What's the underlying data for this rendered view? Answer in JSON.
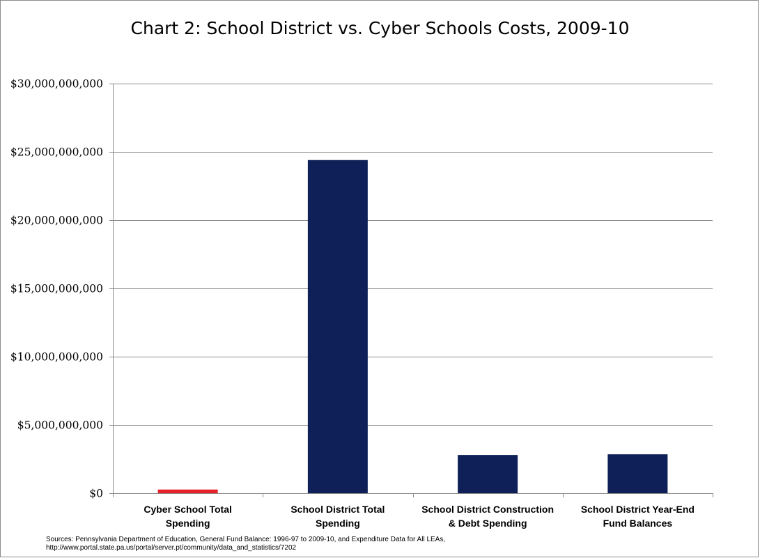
{
  "chart_data": {
    "type": "bar",
    "title": "Chart 2: School District vs. Cyber Schools Costs, 2009-10",
    "xlabel": "",
    "ylabel": "",
    "categories": [
      [
        "Cyber School Total",
        "Spending"
      ],
      [
        "School District Total",
        "Spending"
      ],
      [
        "School District Construction",
        "& Debt Spending"
      ],
      [
        "School District Year-End",
        "Fund Balances"
      ]
    ],
    "values": [
      270000000,
      24400000000,
      2800000000,
      2850000000
    ],
    "bar_colors": [
      "#e8222a",
      "#0e2057",
      "#0e2057",
      "#0e2057"
    ],
    "ylim": [
      0,
      30000000000
    ],
    "y_ticks": [
      0,
      5000000000,
      10000000000,
      15000000000,
      20000000000,
      25000000000,
      30000000000
    ],
    "y_tick_labels": [
      "$0",
      "$5,000,000,000",
      "$10,000,000,000",
      "$15,000,000,000",
      "$20,000,000,000",
      "$25,000,000,000",
      "$30,000,000,000"
    ],
    "grid": true,
    "legend": "none",
    "source": [
      "Sources: Pennsylvania Department of Education, General Fund Balance: 1996-97 to 2009-10, and Expenditure Data for All LEAs,",
      "http://www.portal.state.pa.us/portal/server.pt/community/data_and_statistics/7202"
    ]
  }
}
